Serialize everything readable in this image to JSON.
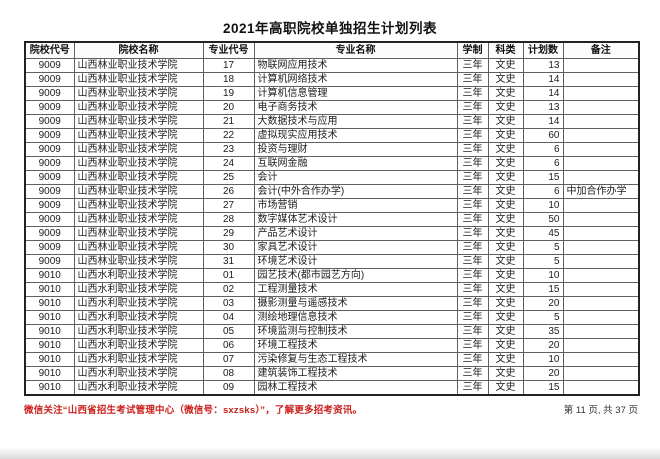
{
  "title": "2021年高职院校单独招生计划列表",
  "table": {
    "columns": [
      {
        "label": "院校代号"
      },
      {
        "label": "院校名称"
      },
      {
        "label": "专业代号"
      },
      {
        "label": "专业名称"
      },
      {
        "label": "学制"
      },
      {
        "label": "科类"
      },
      {
        "label": "计划数"
      },
      {
        "label": "备注"
      }
    ],
    "rows": [
      [
        "9009",
        "山西林业职业技术学院",
        "17",
        "物联网应用技术",
        "三年",
        "文史",
        "13",
        ""
      ],
      [
        "9009",
        "山西林业职业技术学院",
        "18",
        "计算机网络技术",
        "三年",
        "文史",
        "14",
        ""
      ],
      [
        "9009",
        "山西林业职业技术学院",
        "19",
        "计算机信息管理",
        "三年",
        "文史",
        "14",
        ""
      ],
      [
        "9009",
        "山西林业职业技术学院",
        "20",
        "电子商务技术",
        "三年",
        "文史",
        "13",
        ""
      ],
      [
        "9009",
        "山西林业职业技术学院",
        "21",
        "大数据技术与应用",
        "三年",
        "文史",
        "14",
        ""
      ],
      [
        "9009",
        "山西林业职业技术学院",
        "22",
        "虚拟现实应用技术",
        "三年",
        "文史",
        "60",
        ""
      ],
      [
        "9009",
        "山西林业职业技术学院",
        "23",
        "投资与理财",
        "三年",
        "文史",
        "6",
        ""
      ],
      [
        "9009",
        "山西林业职业技术学院",
        "24",
        "互联网金融",
        "三年",
        "文史",
        "6",
        ""
      ],
      [
        "9009",
        "山西林业职业技术学院",
        "25",
        "会计",
        "三年",
        "文史",
        "15",
        ""
      ],
      [
        "9009",
        "山西林业职业技术学院",
        "26",
        "会计(中外合作办学)",
        "三年",
        "文史",
        "6",
        "中加合作办学"
      ],
      [
        "9009",
        "山西林业职业技术学院",
        "27",
        "市场营销",
        "三年",
        "文史",
        "10",
        ""
      ],
      [
        "9009",
        "山西林业职业技术学院",
        "28",
        "数字媒体艺术设计",
        "三年",
        "文史",
        "50",
        ""
      ],
      [
        "9009",
        "山西林业职业技术学院",
        "29",
        "产品艺术设计",
        "三年",
        "文史",
        "45",
        ""
      ],
      [
        "9009",
        "山西林业职业技术学院",
        "30",
        "家具艺术设计",
        "三年",
        "文史",
        "5",
        ""
      ],
      [
        "9009",
        "山西林业职业技术学院",
        "31",
        "环境艺术设计",
        "三年",
        "文史",
        "5",
        ""
      ],
      [
        "9010",
        "山西水利职业技术学院",
        "01",
        "园艺技术(都市园艺方向)",
        "三年",
        "文史",
        "10",
        ""
      ],
      [
        "9010",
        "山西水利职业技术学院",
        "02",
        "工程测量技术",
        "三年",
        "文史",
        "15",
        ""
      ],
      [
        "9010",
        "山西水利职业技术学院",
        "03",
        "摄影测量与遥感技术",
        "三年",
        "文史",
        "20",
        ""
      ],
      [
        "9010",
        "山西水利职业技术学院",
        "04",
        "测绘地理信息技术",
        "三年",
        "文史",
        "5",
        ""
      ],
      [
        "9010",
        "山西水利职业技术学院",
        "05",
        "环境监测与控制技术",
        "三年",
        "文史",
        "35",
        ""
      ],
      [
        "9010",
        "山西水利职业技术学院",
        "06",
        "环境工程技术",
        "三年",
        "文史",
        "20",
        ""
      ],
      [
        "9010",
        "山西水利职业技术学院",
        "07",
        "污染修复与生态工程技术",
        "三年",
        "文史",
        "10",
        ""
      ],
      [
        "9010",
        "山西水利职业技术学院",
        "08",
        "建筑装饰工程技术",
        "三年",
        "文史",
        "20",
        ""
      ],
      [
        "9010",
        "山西水利职业技术学院",
        "09",
        "园林工程技术",
        "三年",
        "文史",
        "15",
        ""
      ]
    ]
  },
  "footer": {
    "notice": "微信关注“山西省招生考试管理中心（微信号：sxzsks）”，了解更多招考资讯。",
    "page_info": "第 11 页, 共 37 页"
  },
  "colors": {
    "notice_red": "#c9211e",
    "border_outer": "#222222",
    "border_inner": "#606060",
    "text": "#1a1a1a"
  }
}
